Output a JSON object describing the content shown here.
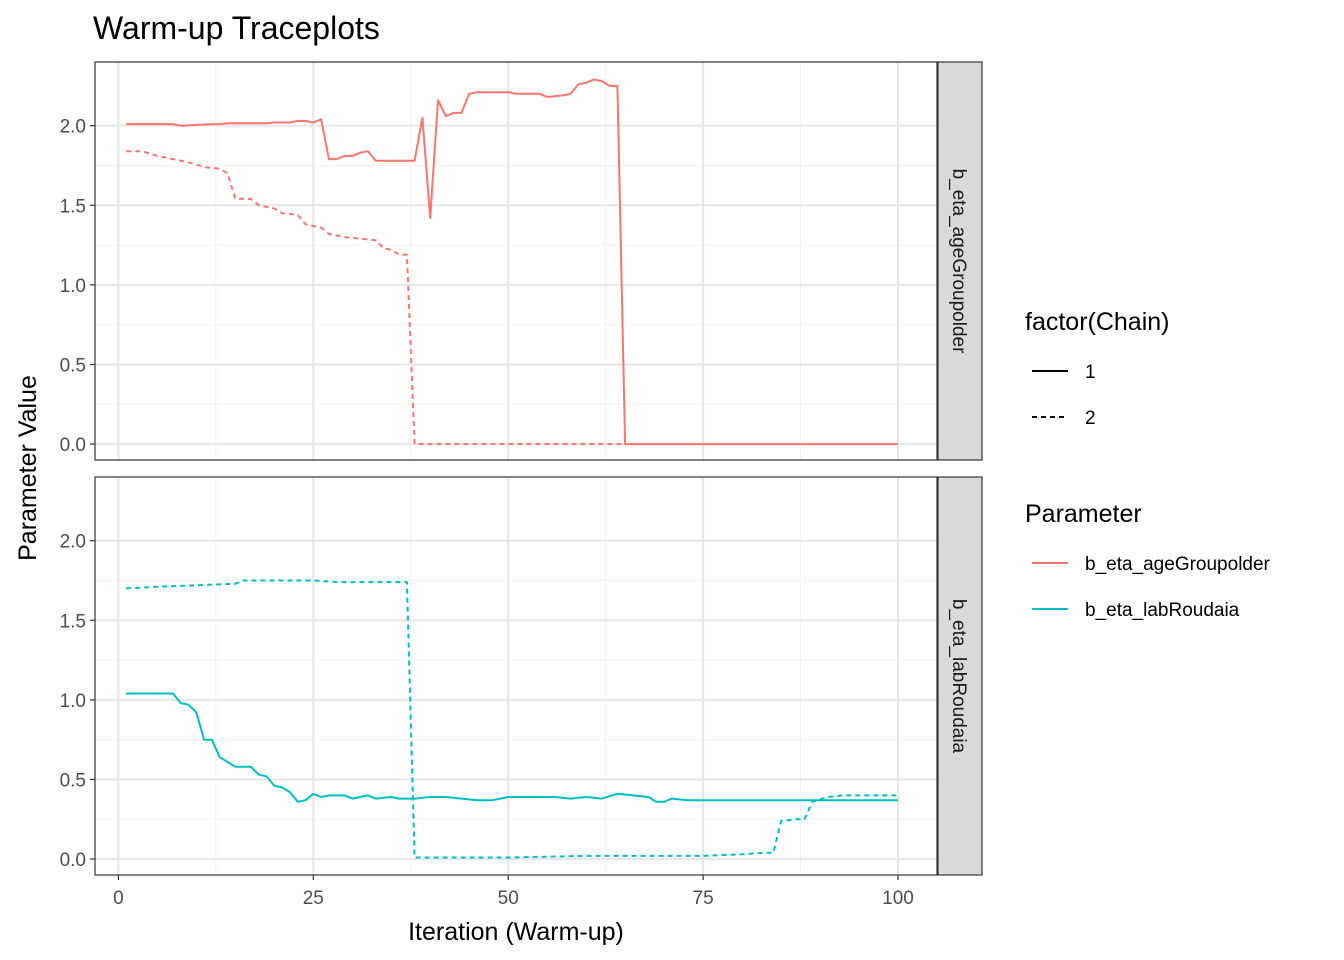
{
  "chart_data": {
    "type": "line",
    "title": "Warm-up Traceplots",
    "xlabel": "Iteration (Warm-up)",
    "ylabel": "Parameter Value",
    "xlim": [
      -3,
      105
    ],
    "ylim": [
      -0.1,
      2.4
    ],
    "xticks": [
      0,
      25,
      50,
      75,
      100
    ],
    "yticks": [
      0.0,
      0.5,
      1.0,
      1.5,
      2.0
    ],
    "ytick_labels": [
      "0.0",
      "0.5",
      "1.0",
      "1.5",
      "2.0"
    ],
    "grid": true,
    "legend_position": "right",
    "legends": [
      {
        "title": "factor(Chain)",
        "entries": [
          {
            "label": "1",
            "dash": "solid"
          },
          {
            "label": "2",
            "dash": "dotted"
          }
        ]
      },
      {
        "title": "Parameter",
        "entries": [
          {
            "label": "b_eta_ageGroupolder",
            "color": "#F8766D"
          },
          {
            "label": "b_eta_labRoudaia",
            "color": "#00BFC4"
          }
        ]
      }
    ],
    "panels": [
      {
        "strip_label": "b_eta_ageGroupolder",
        "color": "#F8766D",
        "series": [
          {
            "chain": "1",
            "points": [
              [
                1,
                2.01
              ],
              [
                3,
                2.01
              ],
              [
                5,
                2.01
              ],
              [
                7,
                2.01
              ],
              [
                8,
                2.0
              ],
              [
                10,
                2.005
              ],
              [
                12,
                2.01
              ],
              [
                13,
                2.01
              ],
              [
                14,
                2.015
              ],
              [
                16,
                2.015
              ],
              [
                18,
                2.015
              ],
              [
                19,
                2.015
              ],
              [
                20,
                2.02
              ],
              [
                22,
                2.02
              ],
              [
                23,
                2.03
              ],
              [
                24,
                2.03
              ],
              [
                25,
                2.02
              ],
              [
                26,
                2.04
              ],
              [
                27,
                1.79
              ],
              [
                28,
                1.79
              ],
              [
                29,
                1.81
              ],
              [
                30,
                1.81
              ],
              [
                31,
                1.83
              ],
              [
                32,
                1.84
              ],
              [
                33,
                1.78
              ],
              [
                35,
                1.78
              ],
              [
                37,
                1.78
              ],
              [
                38,
                1.78
              ],
              [
                39,
                2.05
              ],
              [
                40,
                1.42
              ],
              [
                41,
                2.16
              ],
              [
                42,
                2.06
              ],
              [
                43,
                2.08
              ],
              [
                44,
                2.08
              ],
              [
                45,
                2.2
              ],
              [
                46,
                2.21
              ],
              [
                48,
                2.21
              ],
              [
                50,
                2.21
              ],
              [
                51,
                2.2
              ],
              [
                52,
                2.2
              ],
              [
                54,
                2.2
              ],
              [
                55,
                2.18
              ],
              [
                57,
                2.19
              ],
              [
                58,
                2.2
              ],
              [
                59,
                2.26
              ],
              [
                60,
                2.27
              ],
              [
                61,
                2.29
              ],
              [
                62,
                2.28
              ],
              [
                63,
                2.25
              ],
              [
                64,
                2.25
              ],
              [
                65,
                0.0
              ],
              [
                80,
                0.0
              ],
              [
                100,
                0.0
              ]
            ]
          },
          {
            "chain": "2",
            "points": [
              [
                1,
                1.84
              ],
              [
                3,
                1.84
              ],
              [
                5,
                1.81
              ],
              [
                7,
                1.79
              ],
              [
                9,
                1.77
              ],
              [
                11,
                1.74
              ],
              [
                13,
                1.73
              ],
              [
                14,
                1.7
              ],
              [
                15,
                1.54
              ],
              [
                17,
                1.54
              ],
              [
                18,
                1.5
              ],
              [
                20,
                1.48
              ],
              [
                21,
                1.45
              ],
              [
                23,
                1.44
              ],
              [
                24,
                1.38
              ],
              [
                26,
                1.36
              ],
              [
                27,
                1.32
              ],
              [
                29,
                1.3
              ],
              [
                31,
                1.29
              ],
              [
                33,
                1.28
              ],
              [
                34,
                1.23
              ],
              [
                35,
                1.22
              ],
              [
                36,
                1.19
              ],
              [
                37,
                1.19
              ],
              [
                38,
                0.0
              ],
              [
                50,
                0.0
              ],
              [
                64,
                0.0
              ],
              [
                65,
                0.0
              ]
            ]
          }
        ]
      },
      {
        "strip_label": "b_eta_labRoudaia",
        "color": "#00BFC4",
        "series": [
          {
            "chain": "1",
            "points": [
              [
                1,
                1.04
              ],
              [
                3,
                1.04
              ],
              [
                5,
                1.04
              ],
              [
                7,
                1.04
              ],
              [
                8,
                0.98
              ],
              [
                9,
                0.97
              ],
              [
                10,
                0.92
              ],
              [
                11,
                0.75
              ],
              [
                12,
                0.75
              ],
              [
                13,
                0.64
              ],
              [
                14,
                0.61
              ],
              [
                15,
                0.58
              ],
              [
                17,
                0.58
              ],
              [
                18,
                0.53
              ],
              [
                19,
                0.52
              ],
              [
                20,
                0.46
              ],
              [
                21,
                0.45
              ],
              [
                22,
                0.42
              ],
              [
                23,
                0.36
              ],
              [
                24,
                0.37
              ],
              [
                25,
                0.41
              ],
              [
                26,
                0.39
              ],
              [
                27,
                0.4
              ],
              [
                29,
                0.4
              ],
              [
                30,
                0.38
              ],
              [
                31,
                0.39
              ],
              [
                32,
                0.4
              ],
              [
                33,
                0.38
              ],
              [
                35,
                0.39
              ],
              [
                36,
                0.38
              ],
              [
                38,
                0.38
              ],
              [
                40,
                0.39
              ],
              [
                42,
                0.39
              ],
              [
                44,
                0.38
              ],
              [
                46,
                0.37
              ],
              [
                48,
                0.37
              ],
              [
                50,
                0.39
              ],
              [
                53,
                0.39
              ],
              [
                56,
                0.39
              ],
              [
                58,
                0.38
              ],
              [
                60,
                0.39
              ],
              [
                62,
                0.38
              ],
              [
                64,
                0.41
              ],
              [
                66,
                0.4
              ],
              [
                68,
                0.39
              ],
              [
                69,
                0.36
              ],
              [
                70,
                0.36
              ],
              [
                71,
                0.38
              ],
              [
                73,
                0.37
              ],
              [
                75,
                0.37
              ],
              [
                78,
                0.37
              ],
              [
                80,
                0.37
              ],
              [
                82,
                0.37
              ],
              [
                84,
                0.37
              ],
              [
                86,
                0.37
              ],
              [
                88,
                0.37
              ],
              [
                90,
                0.37
              ],
              [
                92,
                0.37
              ],
              [
                94,
                0.37
              ],
              [
                96,
                0.37
              ],
              [
                98,
                0.37
              ],
              [
                100,
                0.37
              ]
            ]
          },
          {
            "chain": "2",
            "points": [
              [
                1,
                1.7
              ],
              [
                5,
                1.71
              ],
              [
                10,
                1.72
              ],
              [
                15,
                1.73
              ],
              [
                16,
                1.75
              ],
              [
                20,
                1.75
              ],
              [
                25,
                1.75
              ],
              [
                28,
                1.74
              ],
              [
                30,
                1.74
              ],
              [
                33,
                1.74
              ],
              [
                35,
                1.74
              ],
              [
                37,
                1.74
              ],
              [
                38,
                0.01
              ],
              [
                45,
                0.01
              ],
              [
                50,
                0.01
              ],
              [
                60,
                0.02
              ],
              [
                70,
                0.02
              ],
              [
                75,
                0.02
              ],
              [
                80,
                0.03
              ],
              [
                83,
                0.04
              ],
              [
                84,
                0.04
              ],
              [
                85,
                0.24
              ],
              [
                87,
                0.25
              ],
              [
                88,
                0.25
              ],
              [
                89,
                0.36
              ],
              [
                91,
                0.39
              ],
              [
                93,
                0.4
              ],
              [
                95,
                0.4
              ],
              [
                100,
                0.4
              ]
            ]
          }
        ]
      }
    ]
  }
}
